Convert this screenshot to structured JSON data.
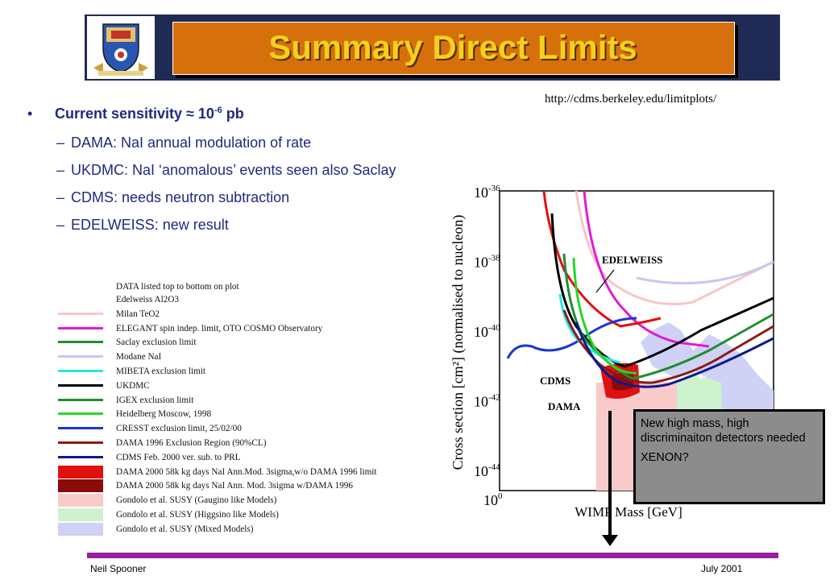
{
  "header": {
    "title": "Summary Direct Limits",
    "crest_icon": "university-crest-icon",
    "band_color": "#1f2a55",
    "title_bg": "#d6700c",
    "title_color": "#f2d11a"
  },
  "source_url": "http://cdms.berkeley.edu/limitplots/",
  "bullets": {
    "main_prefix": "Current sensitivity ≈ 10",
    "main_exp": "-6",
    "main_suffix": " pb",
    "subs": [
      "DAMA: NaI annual modulation of rate",
      "UKDMC: NaI ‘anomalous’ events seen also Saclay",
      "CDMS: needs neutron subtraction",
      "EDELWEISS: new result"
    ],
    "dash": "–"
  },
  "legend": {
    "header": "DATA listed top to bottom on plot",
    "items": [
      {
        "label": "Edelweiss Al2O3",
        "color": "",
        "style": "none"
      },
      {
        "label": "Milan TeO2",
        "color": "#f7c6c6",
        "style": "line"
      },
      {
        "label": "ELEGANT spin indep. limit, OTO COSMO Observatory",
        "color": "#e21ad8",
        "style": "line"
      },
      {
        "label": "Saclay exclusion limit",
        "color": "#1f8f2f",
        "style": "line"
      },
      {
        "label": "Modane NaI",
        "color": "#c8c8ef",
        "style": "line"
      },
      {
        "label": "MIBETA exclusion limit",
        "color": "#27e6e6",
        "style": "line"
      },
      {
        "label": "UKDMC",
        "color": "#000000",
        "style": "line"
      },
      {
        "label": "IGEX exclusion limit",
        "color": "#1f8f2f",
        "style": "line"
      },
      {
        "label": "Heidelberg Moscow, 1998",
        "color": "#27d627",
        "style": "line"
      },
      {
        "label": "CRESST exclusion limit, 25/02/00",
        "color": "#1a36d6",
        "style": "line"
      },
      {
        "label": "DAMA 1996 Exclusion Region (90%CL)",
        "color": "#8b1a1a",
        "style": "line"
      },
      {
        "label": "CDMS Feb. 2000 ver. sub. to PRL",
        "color": "#0a1a8f",
        "style": "line"
      },
      {
        "label": "DAMA 2000 58k kg days NaI Ann.Mod. 3sigma,w/o DAMA 1996 limit",
        "color": "#e01010",
        "style": "block"
      },
      {
        "label": "DAMA 2000 58k kg days NaI Ann. Mod. 3sigma w/DAMA 1996",
        "color": "#8b0a0a",
        "style": "block"
      },
      {
        "label": "Gondolo et al. SUSY (Gaugino like Models)",
        "color": "#f9caca",
        "style": "block"
      },
      {
        "label": "Gondolo et al. SUSY (Higgsino like Models)",
        "color": "#cdf2cd",
        "style": "block"
      },
      {
        "label": "Gondolo et al. SUSY (Mixed Models)",
        "color": "#cfd2f5",
        "style": "block"
      }
    ]
  },
  "plot": {
    "ylabel": "Cross section [cm²] (normalised to nucleon)",
    "xlabel": "WIMP Mass [GeV]",
    "x_tick_base": "10",
    "x_tick_exp": "0",
    "y_ticks": [
      {
        "base": "10",
        "exp": "-36"
      },
      {
        "base": "10",
        "exp": "-38"
      },
      {
        "base": "10",
        "exp": "-40"
      },
      {
        "base": "10",
        "exp": "-42"
      },
      {
        "base": "10",
        "exp": "-44"
      }
    ],
    "labels": {
      "edelweiss": "EDELWEISS",
      "cdms": "CDMS",
      "dama": "DAMA"
    }
  },
  "note": {
    "line1": "New high mass, high discriminaiton detectors needed",
    "line2": "XENON?"
  },
  "footer": {
    "left": "Neil Spooner",
    "right": "July 2001",
    "bar_color": "#9a1ea0"
  }
}
